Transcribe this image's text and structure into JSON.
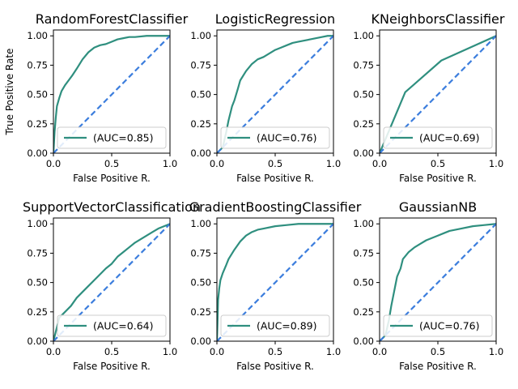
{
  "colors": {
    "roc": "#2f8f7f",
    "diagonal": "#3b7ddd",
    "legend_border": "#cccccc"
  },
  "chart_data": [
    {
      "type": "line",
      "title": "RandomForestClassifier",
      "xlabel": "False Positive R.",
      "ylabel": "True Positive Rate",
      "xlim": [
        0,
        1
      ],
      "ylim": [
        0,
        1.05
      ],
      "xticks": [
        "0.0",
        "0.5",
        "1.0"
      ],
      "yticks": [
        "0.00",
        "0.25",
        "0.50",
        "0.75",
        "1.00"
      ],
      "legend_position": "lower right",
      "series": [
        {
          "name": "(AUC=0.85)",
          "x": [
            0,
            0.01,
            0.02,
            0.03,
            0.05,
            0.07,
            0.1,
            0.13,
            0.16,
            0.2,
            0.25,
            0.3,
            0.35,
            0.4,
            0.45,
            0.5,
            0.55,
            0.6,
            0.65,
            0.7,
            0.8,
            0.9,
            1.0
          ],
          "y": [
            0,
            0.18,
            0.3,
            0.4,
            0.47,
            0.53,
            0.58,
            0.62,
            0.66,
            0.72,
            0.8,
            0.86,
            0.9,
            0.92,
            0.93,
            0.95,
            0.97,
            0.98,
            0.99,
            0.99,
            1.0,
            1.0,
            1.0
          ]
        },
        {
          "name": "",
          "style": "dashed",
          "x": [
            0,
            1
          ],
          "y": [
            0,
            1
          ]
        }
      ]
    },
    {
      "type": "line",
      "title": "LogisticRegression",
      "xlabel": "False Positive R.",
      "ylabel": "",
      "xlim": [
        0,
        1
      ],
      "ylim": [
        0,
        1.05
      ],
      "xticks": [
        "0.0",
        "0.5",
        "1.0"
      ],
      "yticks": [
        "0.00",
        "0.25",
        "0.50",
        "0.75",
        "1.00"
      ],
      "legend_position": "lower right",
      "series": [
        {
          "name": "(AUC=0.76)",
          "x": [
            0,
            0.05,
            0.08,
            0.1,
            0.13,
            0.15,
            0.18,
            0.2,
            0.25,
            0.3,
            0.35,
            0.4,
            0.45,
            0.5,
            0.55,
            0.6,
            0.65,
            0.7,
            0.8,
            0.9,
            0.95,
            1.0
          ],
          "y": [
            0,
            0.05,
            0.18,
            0.28,
            0.4,
            0.45,
            0.55,
            0.62,
            0.7,
            0.76,
            0.8,
            0.82,
            0.85,
            0.88,
            0.9,
            0.92,
            0.94,
            0.95,
            0.97,
            0.99,
            1.0,
            1.0
          ]
        },
        {
          "name": "",
          "style": "dashed",
          "x": [
            0,
            1
          ],
          "y": [
            0,
            1
          ]
        }
      ]
    },
    {
      "type": "line",
      "title": "KNeighborsClassifier",
      "xlabel": "False Positive R.",
      "ylabel": "",
      "xlim": [
        0,
        1
      ],
      "ylim": [
        0,
        1.05
      ],
      "xticks": [
        "0.0",
        "0.5",
        "1.0"
      ],
      "yticks": [
        "0.00",
        "0.25",
        "0.50",
        "0.75",
        "1.00"
      ],
      "legend_position": "lower right",
      "series": [
        {
          "name": "(AUC=0.69)",
          "x": [
            0,
            0.22,
            0.53,
            1.0
          ],
          "y": [
            0,
            0.52,
            0.79,
            1.0
          ]
        },
        {
          "name": "",
          "style": "dashed",
          "x": [
            0,
            1
          ],
          "y": [
            0,
            1
          ]
        }
      ]
    },
    {
      "type": "line",
      "title": "SupportVectorClassification",
      "xlabel": "False Positive R.",
      "ylabel": "",
      "xlim": [
        0,
        1
      ],
      "ylim": [
        0,
        1.05
      ],
      "xticks": [
        "0.0",
        "0.5",
        "1.0"
      ],
      "yticks": [
        "0.00",
        "0.25",
        "0.50",
        "0.75",
        "1.00"
      ],
      "legend_position": "lower right",
      "series": [
        {
          "name": "(AUC=0.64)",
          "x": [
            0,
            0.05,
            0.1,
            0.15,
            0.2,
            0.25,
            0.3,
            0.35,
            0.4,
            0.45,
            0.5,
            0.55,
            0.6,
            0.65,
            0.7,
            0.75,
            0.8,
            0.85,
            0.9,
            0.95,
            1.0
          ],
          "y": [
            0,
            0.2,
            0.25,
            0.3,
            0.37,
            0.42,
            0.47,
            0.52,
            0.57,
            0.62,
            0.66,
            0.72,
            0.76,
            0.8,
            0.84,
            0.87,
            0.9,
            0.93,
            0.96,
            0.98,
            1.0
          ]
        },
        {
          "name": "",
          "style": "dashed",
          "x": [
            0,
            1
          ],
          "y": [
            0,
            1
          ]
        }
      ]
    },
    {
      "type": "line",
      "title": "GradientBoostingClassifier",
      "xlabel": "False Positive R.",
      "ylabel": "",
      "xlim": [
        0,
        1
      ],
      "ylim": [
        0,
        1.05
      ],
      "xticks": [
        "0.0",
        "0.5",
        "1.0"
      ],
      "yticks": [
        "0.00",
        "0.25",
        "0.50",
        "0.75",
        "1.00"
      ],
      "legend_position": "lower right",
      "series": [
        {
          "name": "(AUC=0.89)",
          "x": [
            0,
            0.005,
            0.01,
            0.02,
            0.03,
            0.05,
            0.08,
            0.1,
            0.15,
            0.2,
            0.25,
            0.3,
            0.35,
            0.4,
            0.5,
            0.6,
            0.7,
            0.8,
            1.0
          ],
          "y": [
            0,
            0.15,
            0.35,
            0.45,
            0.52,
            0.58,
            0.65,
            0.7,
            0.78,
            0.85,
            0.9,
            0.93,
            0.95,
            0.96,
            0.98,
            0.99,
            1.0,
            1.0,
            1.0
          ]
        },
        {
          "name": "",
          "style": "dashed",
          "x": [
            0,
            1
          ],
          "y": [
            0,
            1
          ]
        }
      ]
    },
    {
      "type": "line",
      "title": "GaussianNB",
      "xlabel": "False Positive R.",
      "ylabel": "",
      "xlim": [
        0,
        1
      ],
      "ylim": [
        0,
        1.05
      ],
      "xticks": [
        "0.0",
        "0.5",
        "1.0"
      ],
      "yticks": [
        "0.00",
        "0.25",
        "0.50",
        "0.75",
        "1.00"
      ],
      "legend_position": "lower right",
      "series": [
        {
          "name": "(AUC=0.76)",
          "x": [
            0,
            0.05,
            0.08,
            0.1,
            0.13,
            0.15,
            0.18,
            0.2,
            0.25,
            0.3,
            0.35,
            0.4,
            0.45,
            0.5,
            0.55,
            0.6,
            0.7,
            0.8,
            0.9,
            1.0
          ],
          "y": [
            0,
            0.05,
            0.18,
            0.3,
            0.45,
            0.55,
            0.62,
            0.7,
            0.76,
            0.8,
            0.83,
            0.86,
            0.88,
            0.9,
            0.92,
            0.94,
            0.96,
            0.98,
            0.99,
            1.0
          ]
        },
        {
          "name": "",
          "style": "dashed",
          "x": [
            0,
            1
          ],
          "y": [
            0,
            1
          ]
        }
      ]
    }
  ]
}
